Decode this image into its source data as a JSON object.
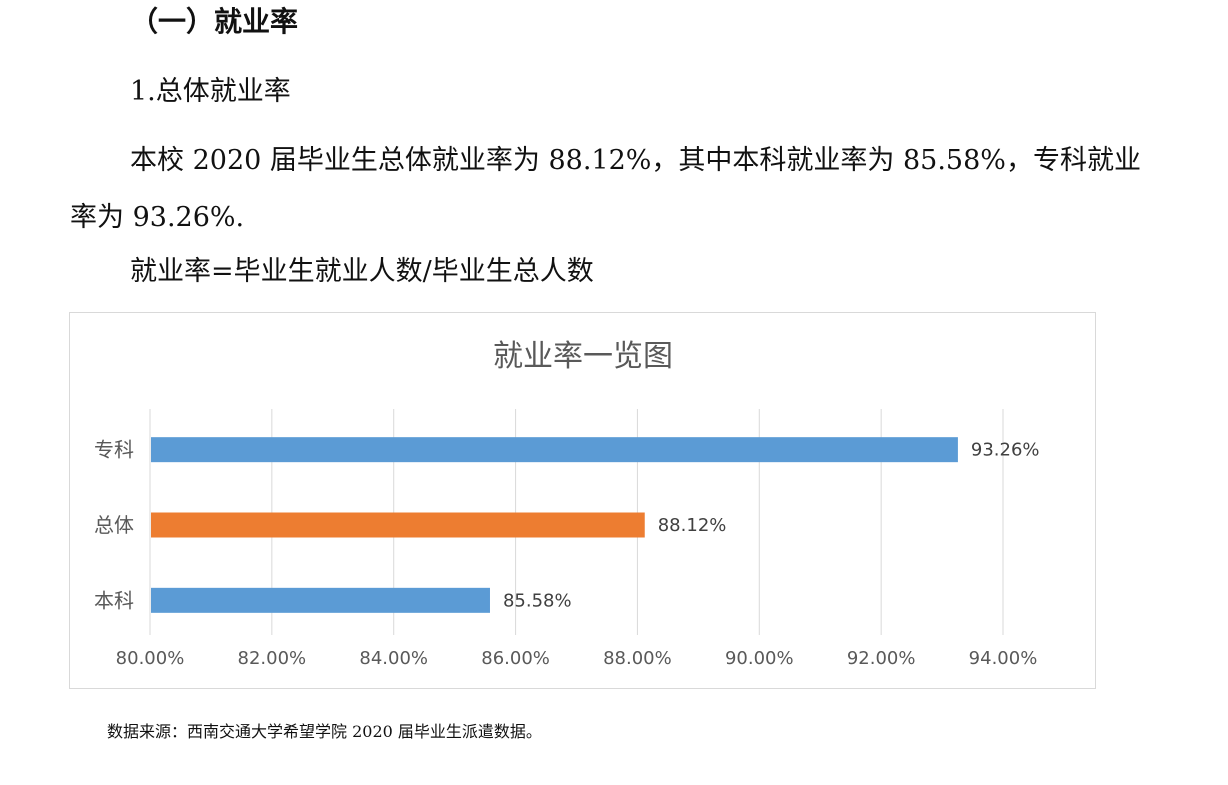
{
  "document": {
    "section_heading": "（一）就业率",
    "sub_heading": "1.总体就业率",
    "paragraph": "本校 2020 届毕业生总体就业率为 88.12%，其中本科就业率为 85.58%，专科就业率为 93.26%.",
    "formula": "就业率=毕业生就业人数/毕业生总人数",
    "source_note": "数据来源：西南交通大学希望学院 2020 届毕业生派遣数据。"
  },
  "chart_data": {
    "type": "bar",
    "orientation": "horizontal",
    "title": "就业率一览图",
    "categories": [
      "专科",
      "总体",
      "本科"
    ],
    "values": [
      93.26,
      88.12,
      85.58
    ],
    "value_labels": [
      "93.26%",
      "88.12%",
      "85.58%"
    ],
    "colors": [
      "#5b9bd5",
      "#ed7d31",
      "#5b9bd5"
    ],
    "xlim": [
      80,
      94
    ],
    "x_ticks": [
      "80.00%",
      "82.00%",
      "84.00%",
      "86.00%",
      "88.00%",
      "90.00%",
      "92.00%",
      "94.00%"
    ],
    "grid": "vertical",
    "legend": "none"
  }
}
